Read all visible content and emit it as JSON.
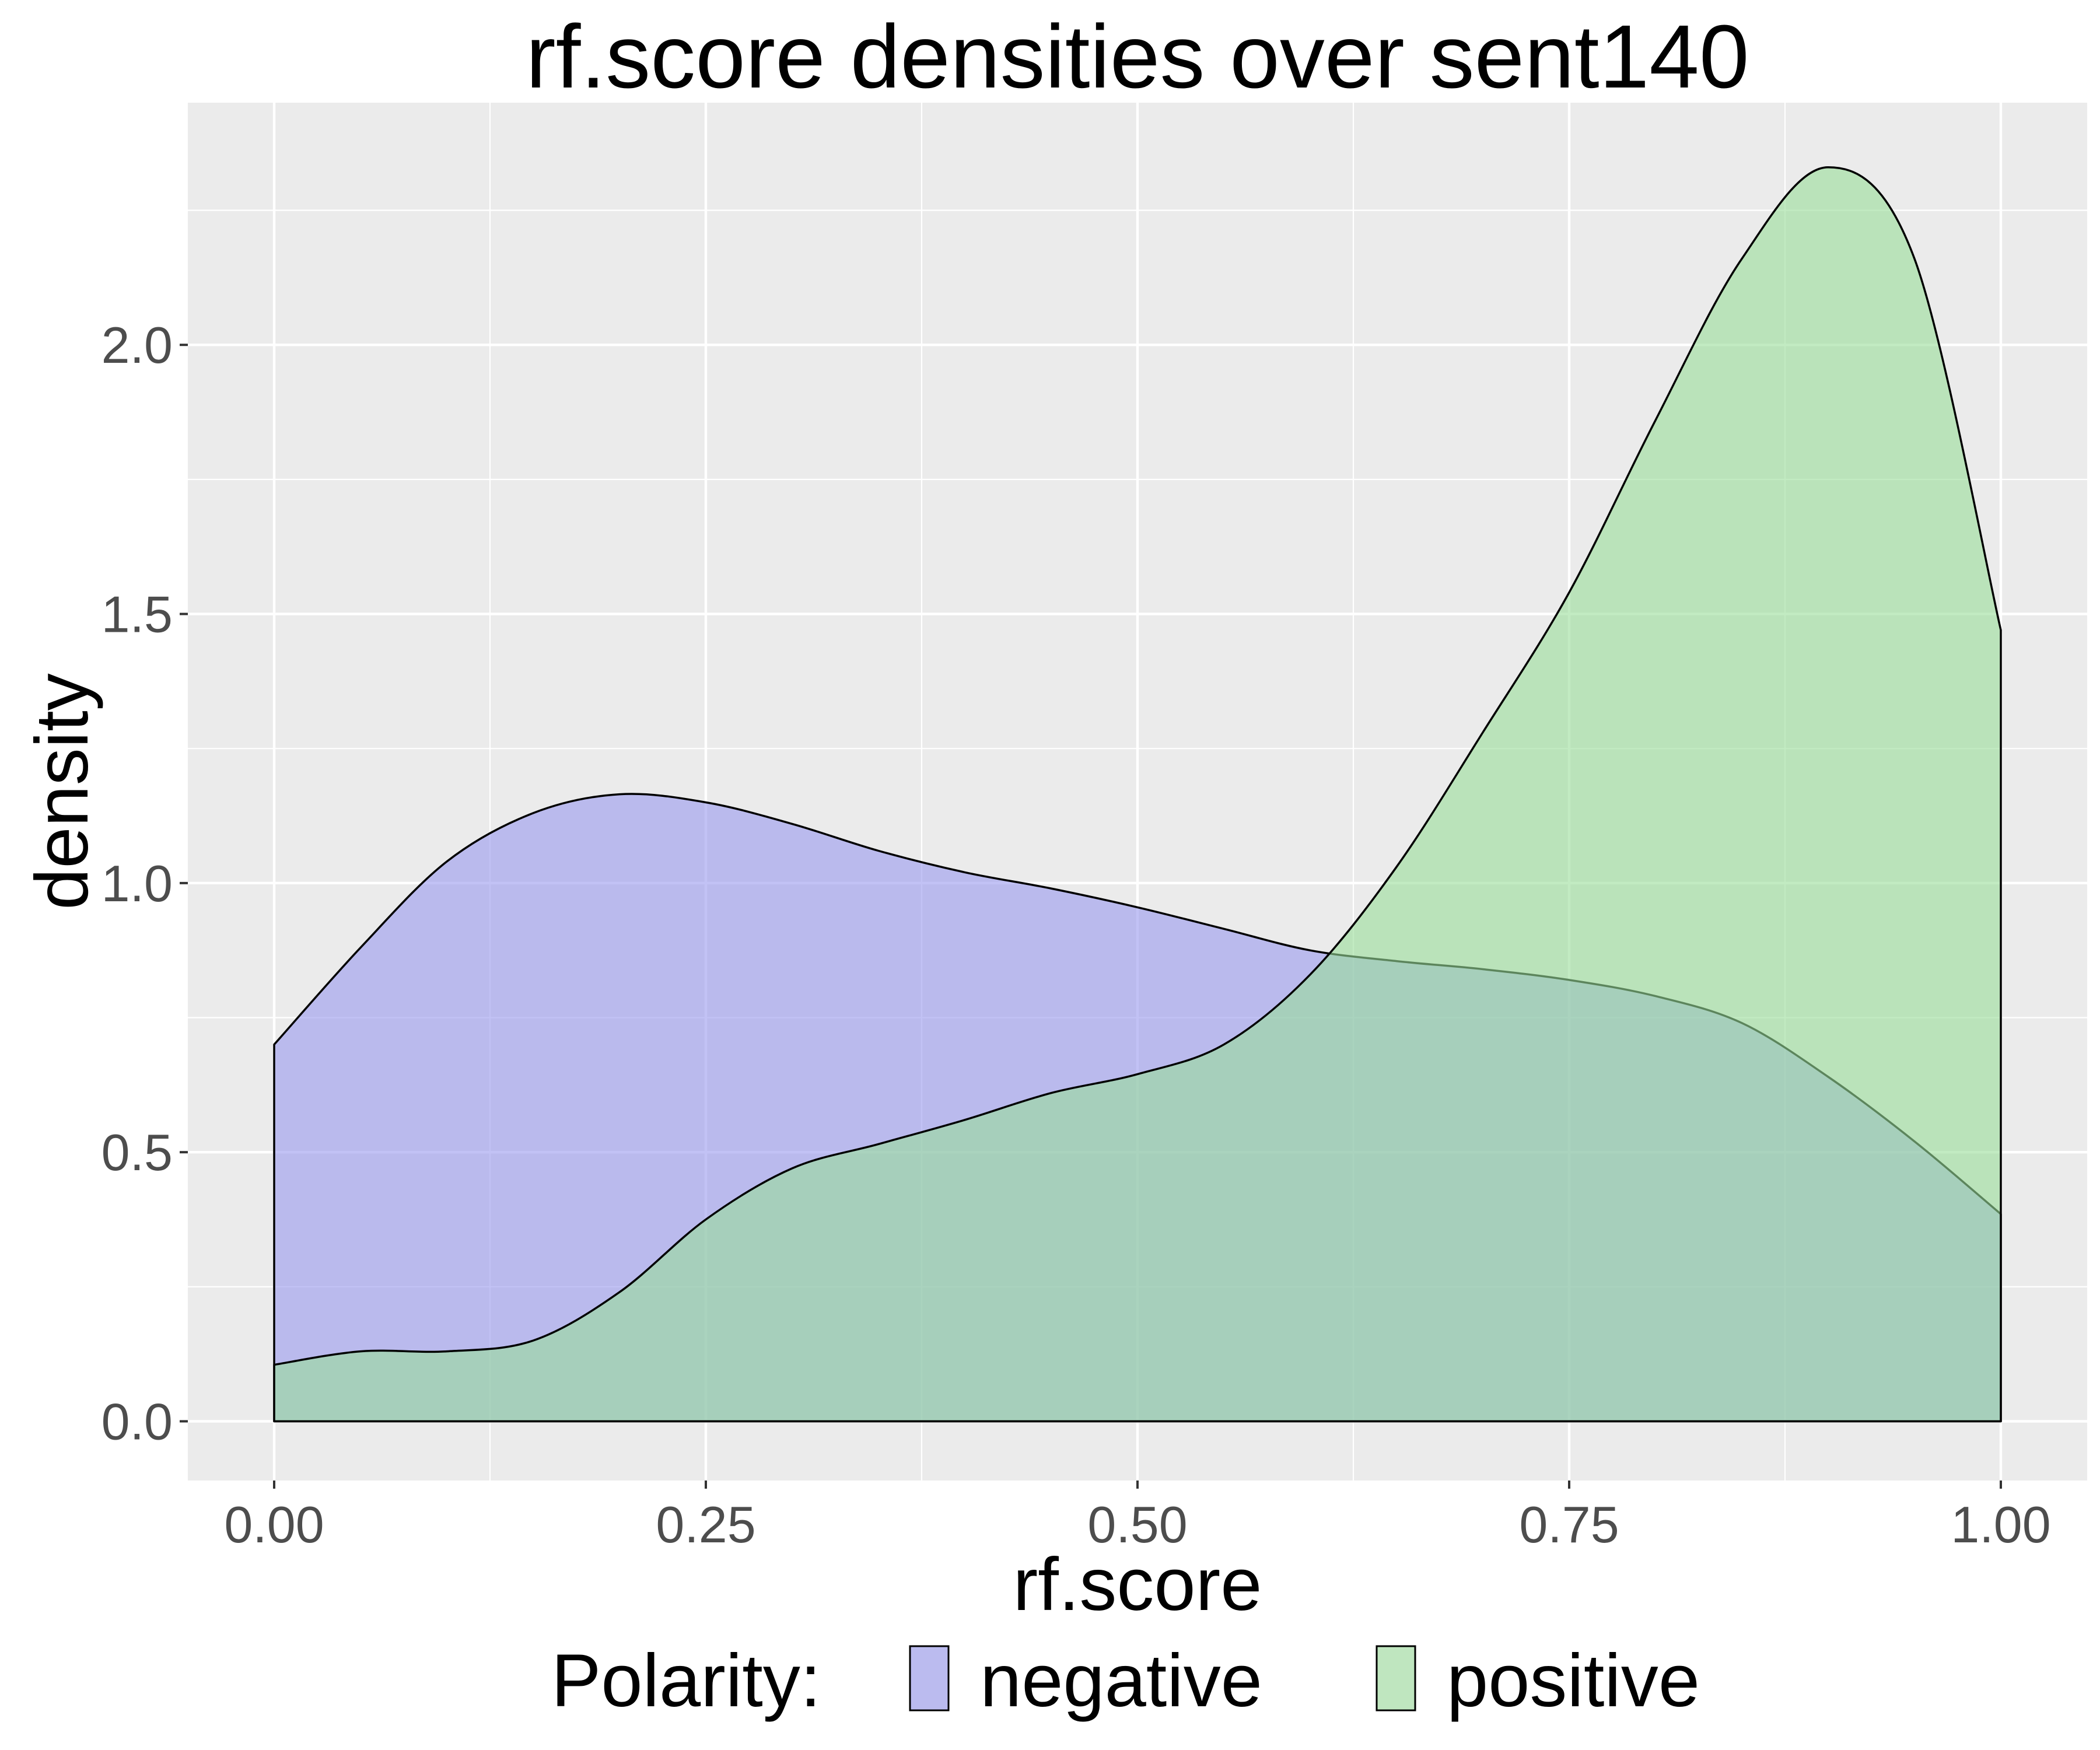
{
  "chart_data": {
    "type": "area",
    "title": "rf.score densities over sent140",
    "xlabel": "rf.score",
    "ylabel": "density",
    "xlim": [
      -0.05,
      1.05
    ],
    "ylim": [
      -0.11,
      2.45
    ],
    "x_ticks": [
      "0.00",
      "0.25",
      "0.50",
      "0.75",
      "1.00"
    ],
    "x_tick_values": [
      0,
      0.25,
      0.5,
      0.75,
      1.0
    ],
    "y_ticks": [
      "0.0",
      "0.5",
      "1.0",
      "1.5",
      "2.0"
    ],
    "y_tick_values": [
      0,
      0.5,
      1.0,
      1.5,
      2.0
    ],
    "grid": true,
    "legend": {
      "title": "Polarity:",
      "placement": "bottom",
      "entries": [
        "negative",
        "positive"
      ]
    },
    "series": [
      {
        "name": "negative",
        "color": "#9999ee",
        "x": [
          0,
          0.05,
          0.1,
          0.15,
          0.2,
          0.25,
          0.3,
          0.35,
          0.4,
          0.45,
          0.5,
          0.55,
          0.6,
          0.65,
          0.7,
          0.75,
          0.8,
          0.85,
          0.9,
          0.95,
          1.0
        ],
        "y": [
          0.7,
          0.88,
          1.04,
          1.13,
          1.165,
          1.15,
          1.11,
          1.06,
          1.02,
          0.99,
          0.955,
          0.915,
          0.875,
          0.855,
          0.84,
          0.82,
          0.79,
          0.74,
          0.64,
          0.52,
          0.385
        ]
      },
      {
        "name": "positive",
        "color": "#99dd99",
        "x": [
          0,
          0.05,
          0.1,
          0.15,
          0.2,
          0.25,
          0.3,
          0.35,
          0.4,
          0.45,
          0.5,
          0.55,
          0.6,
          0.65,
          0.7,
          0.75,
          0.8,
          0.85,
          0.9,
          0.95,
          1.0
        ],
        "y": [
          0.105,
          0.13,
          0.13,
          0.15,
          0.24,
          0.375,
          0.47,
          0.515,
          0.56,
          0.61,
          0.645,
          0.7,
          0.83,
          1.03,
          1.28,
          1.54,
          1.86,
          2.16,
          2.33,
          2.16,
          1.47
        ]
      }
    ]
  }
}
